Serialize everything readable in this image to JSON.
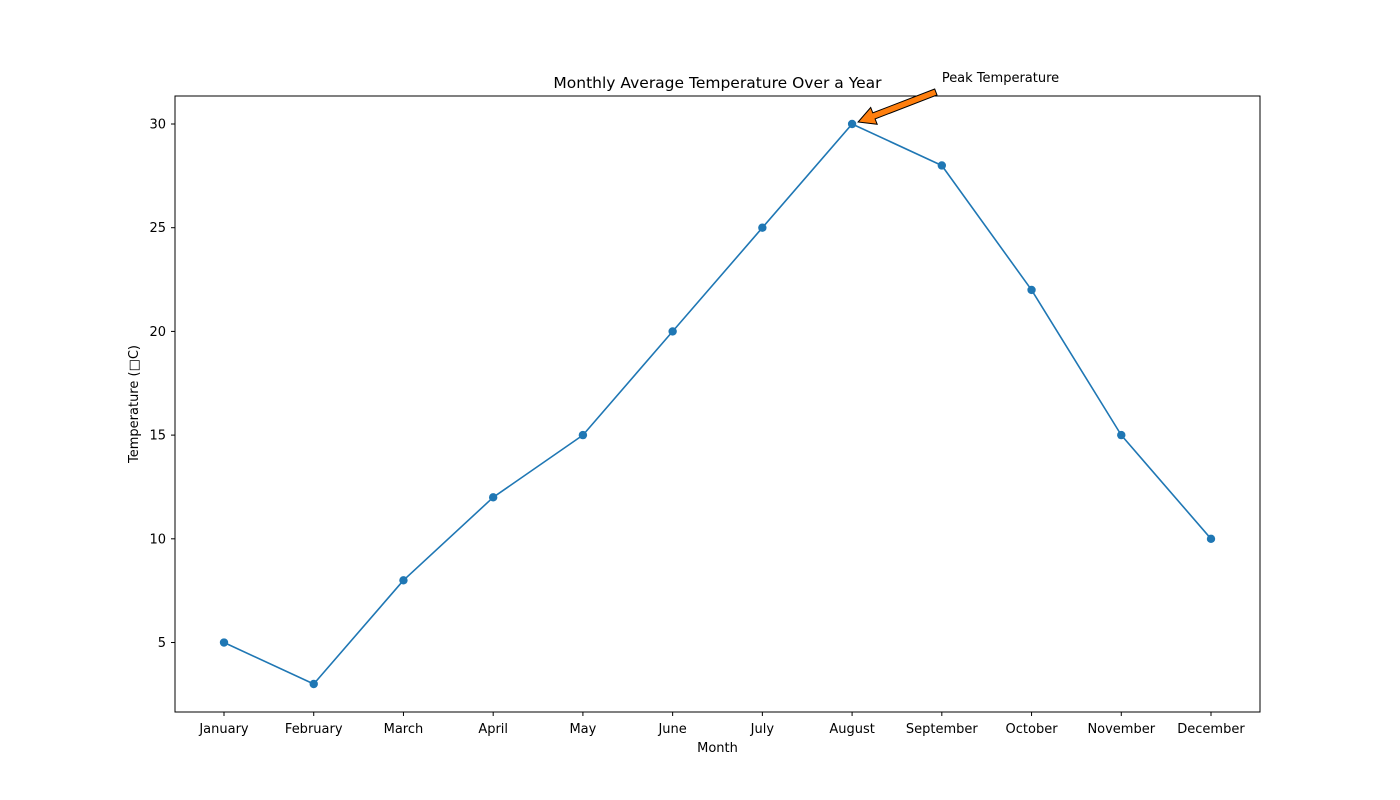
{
  "chart_data": {
    "type": "line",
    "title": "Monthly Average Temperature Over a Year",
    "xlabel": "Month",
    "ylabel": "Temperature (□C)",
    "categories": [
      "January",
      "February",
      "March",
      "April",
      "May",
      "June",
      "July",
      "August",
      "September",
      "October",
      "November",
      "December"
    ],
    "series": [
      {
        "values": [
          5,
          3,
          8,
          12,
          15,
          20,
          25,
          30,
          28,
          22,
          15,
          10
        ],
        "color": "#1f77b4",
        "marker": "circle"
      }
    ],
    "ylim": [
      1.65,
      31.35
    ],
    "yticks": [
      5,
      10,
      15,
      20,
      25,
      30
    ],
    "grid": false,
    "legend": false,
    "annotation": {
      "text": "Peak Temperature",
      "category": "August",
      "value": 30,
      "arrow_color": "#ff7f0e"
    }
  }
}
